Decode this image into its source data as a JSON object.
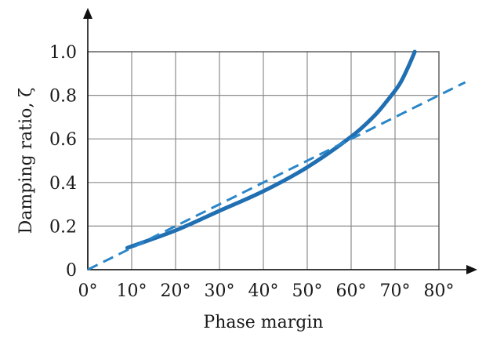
{
  "chart_data": {
    "type": "line",
    "xlabel": "Phase margin",
    "ylabel": "Damping ratio, ζ",
    "xlim": [
      0,
      80
    ],
    "ylim": [
      0,
      1.0
    ],
    "x_ticks": [
      "0°",
      "10°",
      "20°",
      "30°",
      "40°",
      "50°",
      "60°",
      "70°",
      "80°"
    ],
    "y_ticks": [
      "0",
      "0.2",
      "0.4",
      "0.6",
      "0.8",
      "1.0"
    ],
    "grid": true,
    "series": [
      {
        "style": "solid",
        "color": "#1f6fb2",
        "points": [
          {
            "x": 9,
            "y": 0.1
          },
          {
            "x": 20,
            "y": 0.18
          },
          {
            "x": 30,
            "y": 0.27
          },
          {
            "x": 40,
            "y": 0.36
          },
          {
            "x": 50,
            "y": 0.47
          },
          {
            "x": 60,
            "y": 0.61
          },
          {
            "x": 65,
            "y": 0.7
          },
          {
            "x": 68,
            "y": 0.77
          },
          {
            "x": 71,
            "y": 0.85
          },
          {
            "x": 73,
            "y": 0.93
          },
          {
            "x": 74.5,
            "y": 1.0
          }
        ]
      },
      {
        "style": "dashed",
        "color": "#2a86c9",
        "points": [
          {
            "x": 0,
            "y": 0
          },
          {
            "x": 86,
            "y": 0.86
          }
        ]
      }
    ]
  }
}
